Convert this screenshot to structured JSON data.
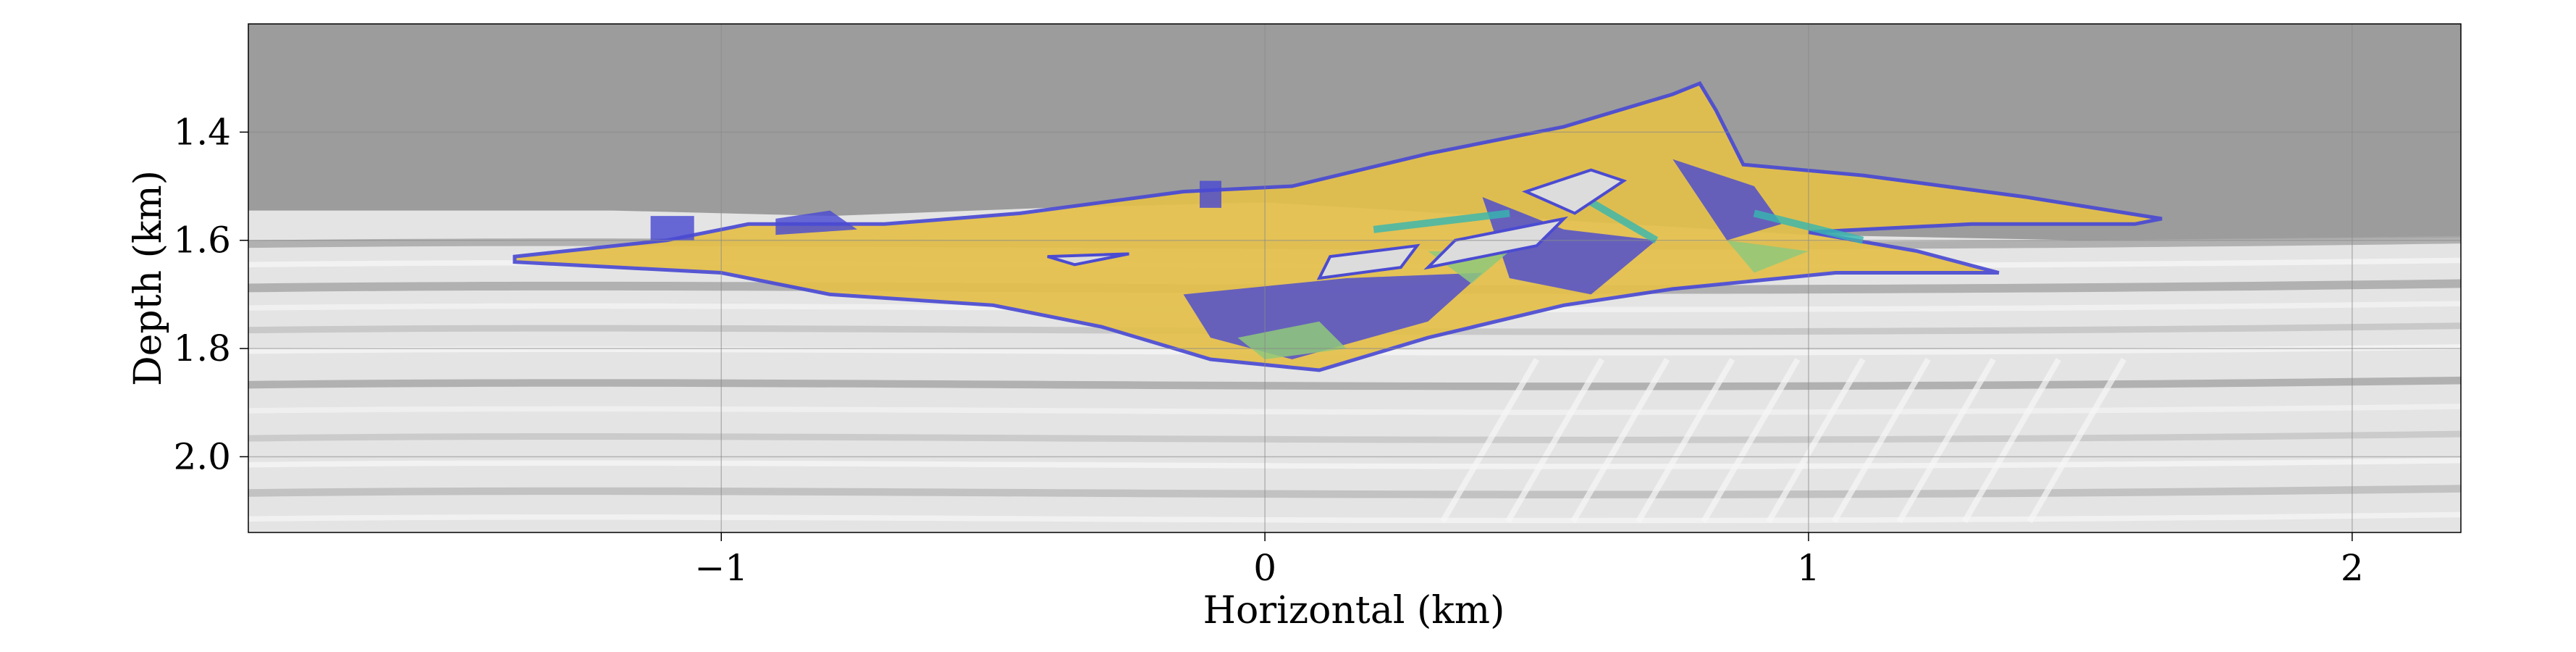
{
  "chart_data": {
    "type": "heatmap",
    "title": "",
    "xlabel": "Horizontal (km)",
    "ylabel": "Depth (km)",
    "xlim": [
      -1.87,
      2.2
    ],
    "ylim": [
      2.14,
      1.2
    ],
    "y_inverted": true,
    "grid": true,
    "x_ticks": [
      {
        "value": -1,
        "label": "−1"
      },
      {
        "value": 0,
        "label": "0"
      },
      {
        "value": 1,
        "label": "1"
      },
      {
        "value": 2,
        "label": "2"
      }
    ],
    "y_ticks": [
      {
        "value": 1.4,
        "label": "1.4"
      },
      {
        "value": 1.6,
        "label": "1.6"
      },
      {
        "value": 1.8,
        "label": "1.8"
      },
      {
        "value": 2.0,
        "label": "2.0"
      }
    ],
    "colors": {
      "background_above": "#9c9c9c",
      "seismic_light": "#e4e4e4",
      "seismic_dark": "#a8a8a8",
      "overlay_low": "#4b4bd2",
      "overlay_mid": "#36b8b0",
      "overlay_green": "#8fc97a",
      "overlay_high": "#e4c04a",
      "grid": "#8a8a8a"
    },
    "overlay_outline": [
      [
        -1.38,
        1.63
      ],
      [
        -1.1,
        1.6
      ],
      [
        -0.95,
        1.57
      ],
      [
        -0.7,
        1.57
      ],
      [
        -0.45,
        1.55
      ],
      [
        -0.15,
        1.51
      ],
      [
        0.05,
        1.5
      ],
      [
        0.3,
        1.44
      ],
      [
        0.55,
        1.39
      ],
      [
        0.75,
        1.33
      ],
      [
        0.8,
        1.31
      ],
      [
        0.83,
        1.36
      ],
      [
        0.88,
        1.46
      ],
      [
        1.1,
        1.48
      ],
      [
        1.4,
        1.52
      ],
      [
        1.65,
        1.56
      ],
      [
        1.6,
        1.57
      ],
      [
        1.3,
        1.57
      ],
      [
        1.0,
        1.585
      ],
      [
        1.2,
        1.62
      ],
      [
        1.35,
        1.66
      ],
      [
        1.05,
        1.66
      ],
      [
        0.75,
        1.69
      ],
      [
        0.55,
        1.72
      ],
      [
        0.3,
        1.78
      ],
      [
        0.1,
        1.84
      ],
      [
        -0.1,
        1.82
      ],
      [
        -0.3,
        1.76
      ],
      [
        -0.5,
        1.72
      ],
      [
        -0.8,
        1.7
      ],
      [
        -1.0,
        1.66
      ],
      [
        -1.38,
        1.64
      ]
    ],
    "overlay_holes": [
      [
        [
          0.48,
          1.51
        ],
        [
          0.6,
          1.47
        ],
        [
          0.66,
          1.49
        ],
        [
          0.57,
          1.55
        ]
      ],
      [
        [
          0.35,
          1.6
        ],
        [
          0.55,
          1.56
        ],
        [
          0.5,
          1.61
        ],
        [
          0.3,
          1.65
        ]
      ],
      [
        [
          0.12,
          1.63
        ],
        [
          0.28,
          1.61
        ],
        [
          0.25,
          1.65
        ],
        [
          0.1,
          1.67
        ]
      ],
      [
        [
          -0.4,
          1.63
        ],
        [
          -0.25,
          1.625
        ],
        [
          -0.35,
          1.645
        ]
      ]
    ],
    "low_value_zones": [
      [
        [
          -0.15,
          1.7
        ],
        [
          0.15,
          1.67
        ],
        [
          0.4,
          1.66
        ],
        [
          0.3,
          1.75
        ],
        [
          0.05,
          1.82
        ],
        [
          -0.1,
          1.78
        ]
      ],
      [
        [
          0.4,
          1.52
        ],
        [
          0.55,
          1.58
        ],
        [
          0.72,
          1.6
        ],
        [
          0.6,
          1.7
        ],
        [
          0.45,
          1.67
        ]
      ],
      [
        [
          0.75,
          1.45
        ],
        [
          0.9,
          1.5
        ],
        [
          0.95,
          1.57
        ],
        [
          0.85,
          1.6
        ]
      ],
      [
        [
          -1.13,
          1.555
        ],
        [
          -1.05,
          1.555
        ],
        [
          -1.05,
          1.6
        ],
        [
          -1.13,
          1.6
        ]
      ],
      [
        [
          -0.9,
          1.56
        ],
        [
          -0.8,
          1.545
        ],
        [
          -0.75,
          1.58
        ],
        [
          -0.9,
          1.59
        ]
      ],
      [
        [
          -0.12,
          1.49
        ],
        [
          -0.08,
          1.49
        ],
        [
          -0.08,
          1.54
        ],
        [
          -0.12,
          1.54
        ]
      ]
    ],
    "green_zones": [
      [
        [
          -0.05,
          1.78
        ],
        [
          0.1,
          1.75
        ],
        [
          0.15,
          1.8
        ],
        [
          0.0,
          1.82
        ]
      ],
      [
        [
          0.85,
          1.6
        ],
        [
          1.0,
          1.62
        ],
        [
          0.9,
          1.66
        ]
      ],
      [
        [
          0.3,
          1.62
        ],
        [
          0.45,
          1.62
        ],
        [
          0.38,
          1.68
        ]
      ]
    ]
  }
}
